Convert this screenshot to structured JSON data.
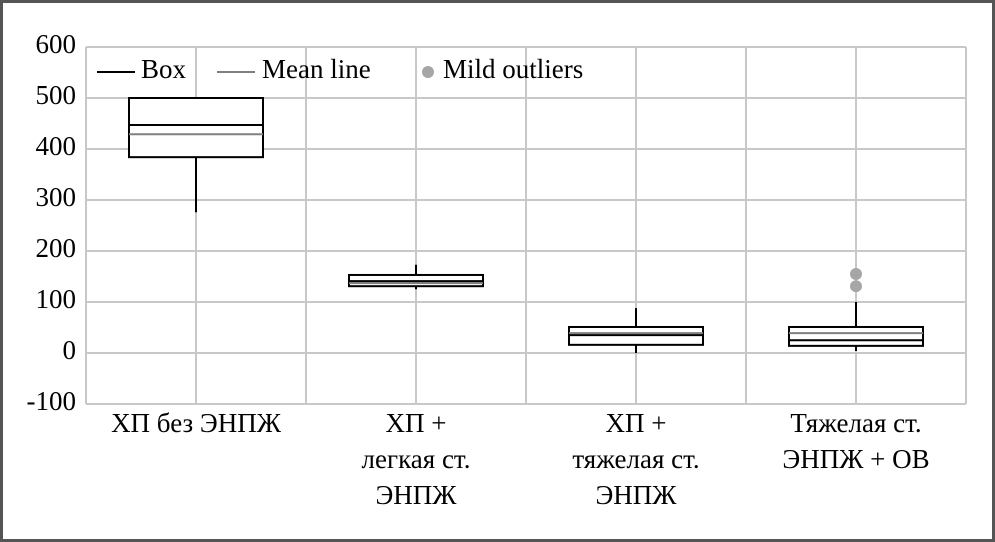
{
  "chart_data": {
    "type": "box",
    "categories": [
      [
        "ХП без ЭНПЖ"
      ],
      [
        "ХП +",
        "легкая ст.",
        "ЭНПЖ"
      ],
      [
        "ХП +",
        "тяжелая ст.",
        "ЭНПЖ"
      ],
      [
        "Тяжелая ст.",
        "ЭНПЖ + ОВ"
      ]
    ],
    "boxes": [
      {
        "min": 276,
        "q1": 384,
        "median": 447,
        "q3": 500,
        "max": 500,
        "mean": 429,
        "outliers": []
      },
      {
        "min": 125,
        "q1": 131,
        "median": 141,
        "q3": 153,
        "max": 173,
        "mean": 137,
        "outliers": []
      },
      {
        "min": 0,
        "q1": 16,
        "median": 35,
        "q3": 51,
        "max": 88,
        "mean": 39,
        "outliers": []
      },
      {
        "min": 4,
        "q1": 14,
        "median": 25,
        "q3": 51,
        "max": 100,
        "mean": 39,
        "outliers": [
          155,
          131
        ]
      }
    ],
    "legend": {
      "box": "Box",
      "mean": "Mean line",
      "outliers": "Mild outliers"
    },
    "colors": {
      "box": "#000000",
      "mean": "#808080",
      "outliers": "#a6a6a6"
    },
    "ylim": [
      -100,
      600
    ],
    "yticks": [
      -100,
      0,
      100,
      200,
      300,
      400,
      500,
      600
    ],
    "grid": true
  }
}
